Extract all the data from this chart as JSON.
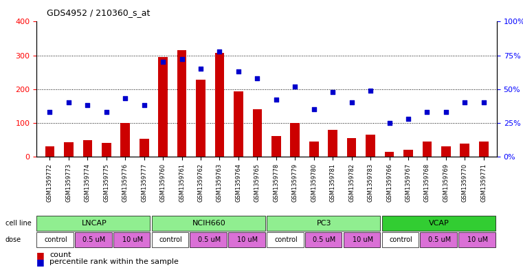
{
  "title": "GDS4952 / 210360_s_at",
  "samples": [
    "GSM1359772",
    "GSM1359773",
    "GSM1359774",
    "GSM1359775",
    "GSM1359776",
    "GSM1359777",
    "GSM1359760",
    "GSM1359761",
    "GSM1359762",
    "GSM1359763",
    "GSM1359764",
    "GSM1359765",
    "GSM1359778",
    "GSM1359779",
    "GSM1359780",
    "GSM1359781",
    "GSM1359782",
    "GSM1359783",
    "GSM1359766",
    "GSM1359767",
    "GSM1359768",
    "GSM1359769",
    "GSM1359770",
    "GSM1359771"
  ],
  "counts": [
    30,
    42,
    48,
    40,
    100,
    52,
    295,
    315,
    228,
    308,
    193,
    140,
    60,
    100,
    45,
    80,
    55,
    65,
    15,
    20,
    45,
    30,
    38,
    45
  ],
  "percentile_ranks": [
    33,
    40,
    38,
    33,
    43,
    38,
    70,
    72,
    65,
    78,
    63,
    58,
    42,
    52,
    35,
    48,
    40,
    49,
    25,
    28,
    33,
    33,
    40,
    40
  ],
  "cell_lines": [
    "LNCAP",
    "NCIH660",
    "PC3",
    "VCAP"
  ],
  "cell_line_spans": [
    [
      0,
      6
    ],
    [
      6,
      12
    ],
    [
      12,
      18
    ],
    [
      18,
      24
    ]
  ],
  "cell_line_colors": [
    "#90EE90",
    "#90EE90",
    "#90EE90",
    "#32CD32"
  ],
  "doses": [
    "control",
    "0.5 uM",
    "10 uM"
  ],
  "dose_colors": [
    "#ffffff",
    "#DA70D6",
    "#DA70D6"
  ],
  "dose_bright_colors": [
    "#ffffff",
    "#EE82EE",
    "#EE82EE"
  ],
  "bar_color": "#CC0000",
  "dot_color": "#0000CC",
  "ylim_left": [
    0,
    400
  ],
  "ylim_right": [
    0,
    100
  ],
  "yticks_left": [
    0,
    100,
    200,
    300,
    400
  ],
  "yticks_right": [
    0,
    25,
    50,
    75,
    100
  ],
  "ytick_labels_right": [
    "0%",
    "25%",
    "50%",
    "75%",
    "100%"
  ],
  "grid_color": "#000000",
  "background_color": "#ffffff",
  "bar_width": 0.5
}
